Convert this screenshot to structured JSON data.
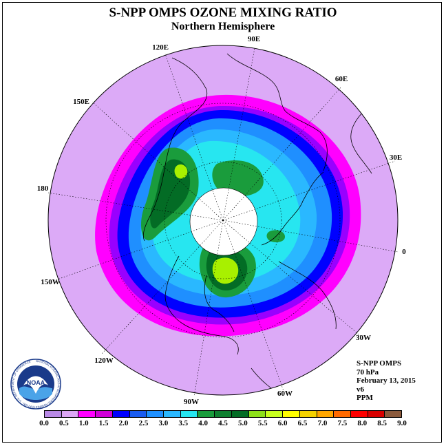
{
  "title": "S-NPP OMPS OZONE MIXING RATIO",
  "subtitle": "Northern Hemisphere",
  "info": {
    "instrument": "S-NPP OMPS",
    "level": "70 hPa",
    "date": "February 13, 2015",
    "version": "v6",
    "unit": "PPM"
  },
  "longitude_labels": [
    "90E",
    "60E",
    "30E",
    "0",
    "30W",
    "60W",
    "90W",
    "120W",
    "150W",
    "180",
    "150E",
    "120E"
  ],
  "logo": {
    "text": "NOAA",
    "ring_text": "NATIONAL OCEANIC AND ATMOSPHERIC ADMINISTRATION · U.S. DEPARTMENT OF COMMERCE"
  },
  "colorbar": {
    "colors": [
      "#b98ae6",
      "#dca6f5",
      "#ff00ff",
      "#d000d8",
      "#0000ff",
      "#1a5cf0",
      "#1e90ff",
      "#2ab8ff",
      "#27e6f0",
      "#1a9c3c",
      "#0f8030",
      "#036c25",
      "#8ee01a",
      "#c8ff1e",
      "#ffff00",
      "#f5d200",
      "#ffa600",
      "#ff6a00",
      "#ff0000",
      "#d80000",
      "#8b5a3c"
    ],
    "ticks": [
      "0.0",
      "0.5",
      "1.0",
      "1.5",
      "2.0",
      "2.5",
      "3.0",
      "3.5",
      "4.0",
      "4.5",
      "5.0",
      "5.5",
      "6.0",
      "6.5",
      "7.0",
      "7.5",
      "8.0",
      "8.5",
      "9.0"
    ]
  },
  "map_colors": {
    "outer": "#dcaaf7",
    "band_magenta": "#ff00ff",
    "band_purple": "#9900ff",
    "band_blue": "#0000ff",
    "mid_blue": "#1f8fff",
    "light_blue": "#2ab8ff",
    "cyan": "#27e6f0",
    "green": "#1a9c3c",
    "dark_green": "#036c25",
    "lime": "#a8f000",
    "pole": "#ffffff"
  }
}
